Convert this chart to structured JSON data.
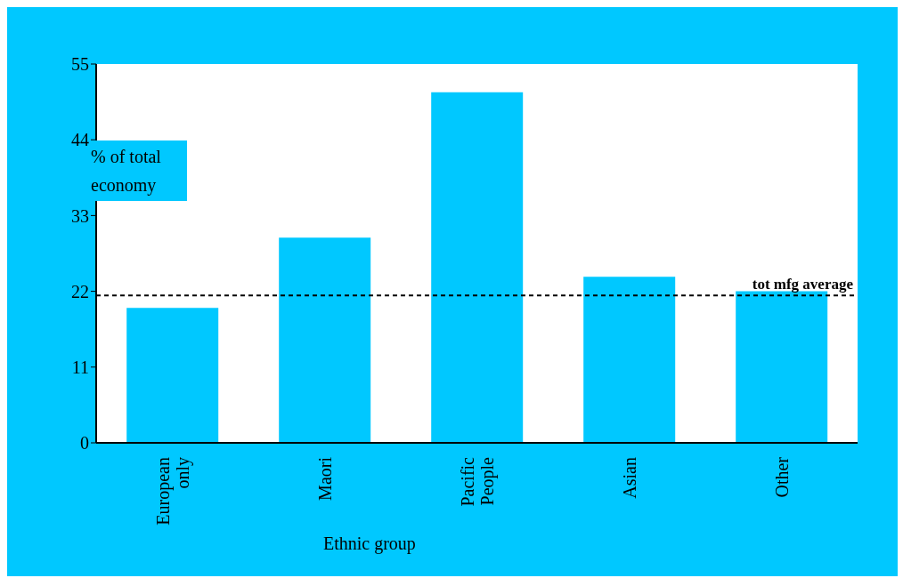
{
  "chart_data": {
    "type": "bar",
    "xlabel": "Ethnic group",
    "ylabel": "% of total economy",
    "categories": [
      "European only",
      "Maori",
      "Pacific People",
      "Asian",
      "Other"
    ],
    "values": [
      19.6,
      29.8,
      50.9,
      24.1,
      22.0
    ],
    "color": "#00c8ff",
    "ylim": [
      0,
      55
    ],
    "yticks": [
      0,
      11,
      22,
      33,
      44,
      55
    ],
    "ref_lines": [
      {
        "axis": "y",
        "value": 21.4,
        "label": "tot mfg average",
        "color": "#000000",
        "line_style": "dashed"
      }
    ]
  }
}
